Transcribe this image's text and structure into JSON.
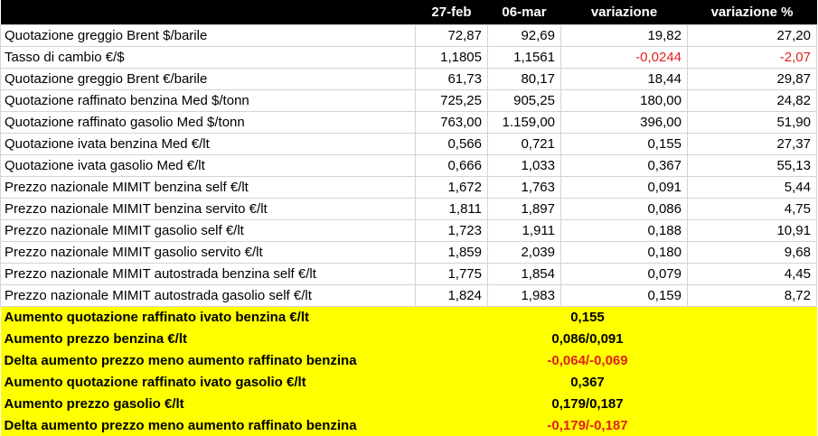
{
  "header": {
    "blank": "",
    "date1": "27-feb",
    "date2": "06-mar",
    "variation": "variazione",
    "variation_pct": "variazione %"
  },
  "rows": [
    {
      "label": "Quotazione greggio Brent $/barile",
      "d1": "72,87",
      "d2": "92,69",
      "var": "19,82",
      "pct": "27,20",
      "negative": false
    },
    {
      "label": "Tasso di cambio €/$",
      "d1": "1,1805",
      "d2": "1,1561",
      "var": "-0,0244",
      "pct": "-2,07",
      "negative": true
    },
    {
      "label": "Quotazione greggio Brent €/barile",
      "d1": "61,73",
      "d2": "80,17",
      "var": "18,44",
      "pct": "29,87",
      "negative": false
    },
    {
      "label": "Quotazione raffinato benzina Med $/tonn",
      "d1": "725,25",
      "d2": "905,25",
      "var": "180,00",
      "pct": "24,82",
      "negative": false
    },
    {
      "label": "Quotazione raffinato gasolio Med $/tonn",
      "d1": "763,00",
      "d2": "1.159,00",
      "var": "396,00",
      "pct": "51,90",
      "negative": false
    },
    {
      "label": "Quotazione ivata benzina Med €/lt",
      "d1": "0,566",
      "d2": "0,721",
      "var": "0,155",
      "pct": "27,37",
      "negative": false
    },
    {
      "label": "Quotazione ivata gasolio Med €/lt",
      "d1": "0,666",
      "d2": "1,033",
      "var": "0,367",
      "pct": "55,13",
      "negative": false
    },
    {
      "label": "Prezzo nazionale MIMIT benzina self €/lt",
      "d1": "1,672",
      "d2": "1,763",
      "var": "0,091",
      "pct": "5,44",
      "negative": false
    },
    {
      "label": "Prezzo nazionale MIMIT benzina servito €/lt",
      "d1": "1,811",
      "d2": "1,897",
      "var": "0,086",
      "pct": "4,75",
      "negative": false
    },
    {
      "label": "Prezzo nazionale MIMIT gasolio self €/lt",
      "d1": "1,723",
      "d2": "1,911",
      "var": "0,188",
      "pct": "10,91",
      "negative": false
    },
    {
      "label": "Prezzo nazionale MIMIT gasolio servito €/lt",
      "d1": "1,859",
      "d2": "2,039",
      "var": "0,180",
      "pct": "9,68",
      "negative": false
    },
    {
      "label": "Prezzo nazionale MIMIT autostrada benzina self €/lt",
      "d1": "1,775",
      "d2": "1,854",
      "var": "0,079",
      "pct": "4,45",
      "negative": false
    },
    {
      "label": "Prezzo nazionale MIMIT autostrada gasolio self €/lt",
      "d1": "1,824",
      "d2": "1,983",
      "var": "0,159",
      "pct": "8,72",
      "negative": false
    }
  ],
  "summary": [
    {
      "label": "Aumento quotazione raffinato ivato benzina €/lt",
      "value": "0,155",
      "negative": false
    },
    {
      "label": "Aumento prezzo benzina €/lt",
      "value": "0,086/0,091",
      "negative": false
    },
    {
      "label": "Delta aumento prezzo meno aumento raffinato benzina",
      "value": "-0,064/-0,069",
      "negative": true
    },
    {
      "label": "Aumento quotazione raffinato ivato gasolio €/lt",
      "value": "0,367",
      "negative": false
    },
    {
      "label": "Aumento prezzo gasolio €/lt",
      "value": "0,179/0,187",
      "negative": false
    },
    {
      "label": "Delta aumento prezzo meno aumento raffinato benzina",
      "value": "-0,179/-0,187",
      "negative": true
    }
  ],
  "colors": {
    "header_bg": "#000000",
    "header_text": "#ffffff",
    "negative_text": "#e0201b",
    "summary_bg": "#ffff00",
    "grid": "#d4d4d4"
  }
}
